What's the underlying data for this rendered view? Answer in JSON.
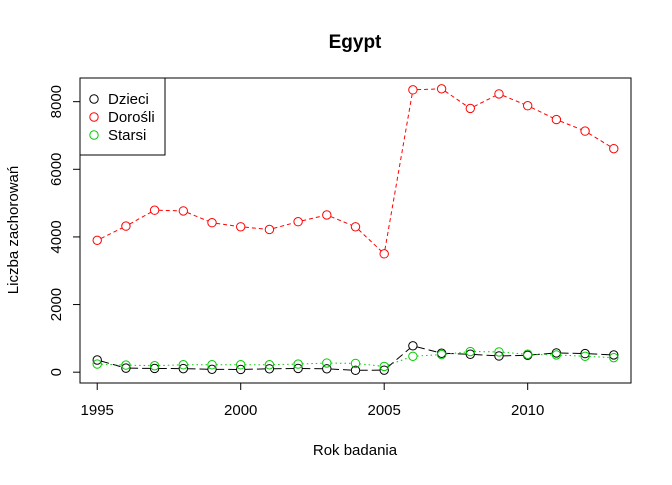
{
  "chart_data": {
    "type": "line",
    "title": "Egypt",
    "xlabel": "Rok badania",
    "ylabel": "Liczba zachorowań",
    "xlim": [
      1994.4,
      2013.6
    ],
    "ylim": [
      -320,
      8700
    ],
    "x_ticks": [
      1995,
      2000,
      2005,
      2010
    ],
    "y_ticks": [
      0,
      2000,
      4000,
      6000,
      8000
    ],
    "grid": false,
    "legend_position": "top-left",
    "x": [
      1995,
      1996,
      1997,
      1998,
      1999,
      2000,
      2001,
      2002,
      2003,
      2004,
      2005,
      2006,
      2007,
      2008,
      2009,
      2010,
      2011,
      2012,
      2013
    ],
    "series": [
      {
        "name": "Dzieci",
        "color": "#000000",
        "dash": "8,4",
        "values": [
          360,
          120,
          110,
          105,
          85,
          80,
          100,
          110,
          100,
          55,
          60,
          780,
          560,
          530,
          480,
          500,
          570,
          550,
          510
        ]
      },
      {
        "name": "Dorośli",
        "color": "#ff0000",
        "dash": "4,3",
        "values": [
          3900,
          4320,
          4790,
          4770,
          4420,
          4300,
          4220,
          4450,
          4650,
          4300,
          3500,
          8350,
          8380,
          7800,
          8230,
          7880,
          7470,
          7130,
          6610
        ]
      },
      {
        "name": "Starsi",
        "color": "#00cd00",
        "dash": "1.5,3",
        "values": [
          240,
          210,
          190,
          220,
          220,
          220,
          220,
          240,
          270,
          260,
          170,
          470,
          520,
          610,
          600,
          530,
          510,
          470,
          430
        ]
      }
    ]
  }
}
